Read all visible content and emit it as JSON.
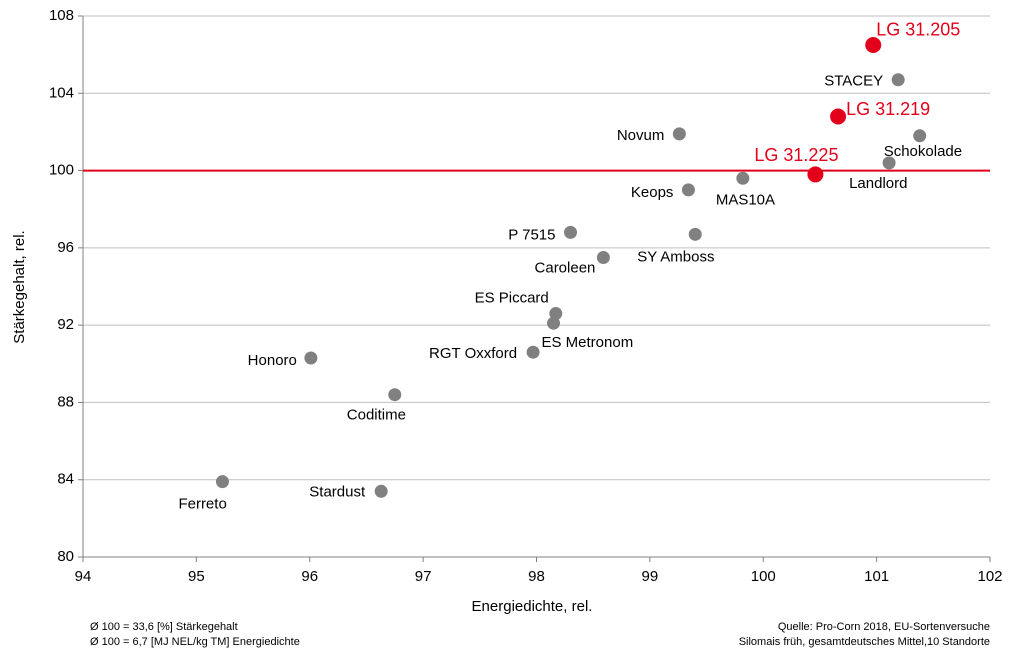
{
  "chart_data": {
    "type": "scatter",
    "xlabel": "Energiedichte, rel.",
    "ylabel": "Stärkegehalt,  rel.",
    "xlim": [
      94,
      102
    ],
    "xticks": [
      94,
      95,
      96,
      97,
      98,
      99,
      100,
      101,
      102
    ],
    "ylim": [
      80,
      108
    ],
    "yticks": [
      80,
      84,
      88,
      92,
      96,
      100,
      104,
      108
    ],
    "grid": true,
    "reference_line": {
      "value": 100,
      "color": "#e3001b"
    },
    "series": [
      {
        "color": "#e3001b",
        "labels": [
          "LG 31.205",
          "LG 31.219",
          "LG 31.225"
        ],
        "x": [
          100.97,
          100.66,
          100.46
        ],
        "values": [
          106.5,
          102.8,
          99.8
        ]
      },
      {
        "color": "#808080",
        "labels": [
          "STACEY",
          "Schokolade",
          "Novum",
          "Landlord",
          "MAS10A",
          "Keops",
          "P 7515",
          "SY Amboss",
          "Caroleen",
          "ES Piccard",
          "ES Metronom",
          "RGT Oxxford",
          "Honoro",
          "Coditime",
          "Ferreto",
          "Stardust"
        ],
        "x": [
          101.19,
          101.38,
          99.26,
          101.11,
          99.82,
          99.34,
          98.3,
          99.4,
          98.59,
          98.17,
          98.15,
          97.97,
          96.01,
          96.75,
          95.23,
          96.63
        ],
        "values": [
          104.7,
          101.8,
          101.9,
          100.4,
          99.6,
          99.0,
          96.8,
          96.7,
          95.5,
          92.6,
          92.1,
          90.6,
          90.3,
          88.4,
          83.9,
          83.4
        ]
      }
    ],
    "notes_left": [
      "Ø 100 = 33,6 [%] Stärkegehalt",
      "Ø 100 = 6,7 [MJ NEL/kg TM] Energiedichte"
    ],
    "notes_right": [
      "Quelle: Pro-Corn 2018, EU-Sortenversuche",
      "Silomais früh, gesamtdeutsches Mittel,10 Standorte"
    ]
  }
}
